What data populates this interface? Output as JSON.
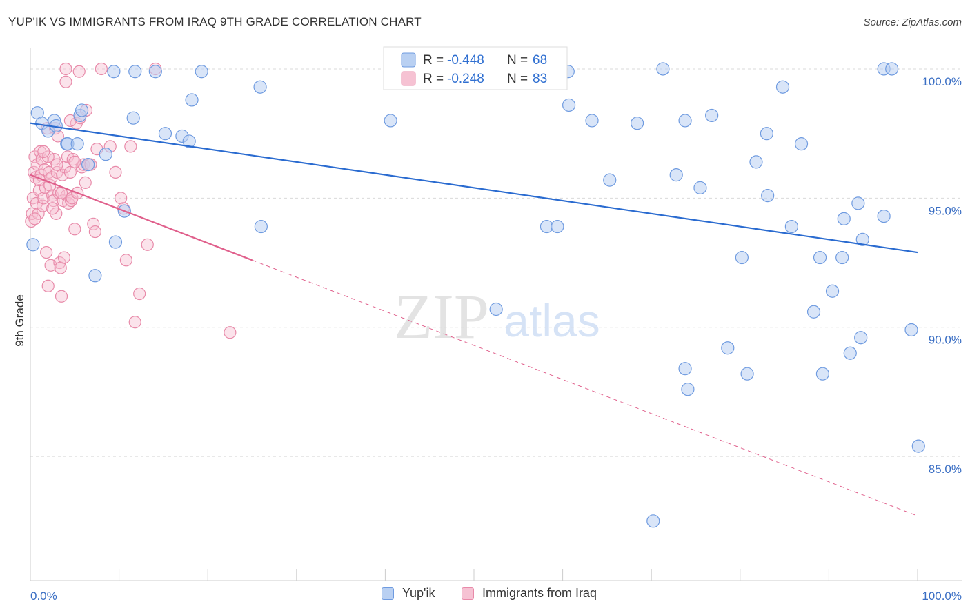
{
  "title": "YUP'IK VS IMMIGRANTS FROM IRAQ 9TH GRADE CORRELATION CHART",
  "source": "Source: ZipAtlas.com",
  "watermark": {
    "zip": "ZIP",
    "atlas": "atlas"
  },
  "colors": {
    "blue": "#6f9be0",
    "blue_fill": "#b9d0f2",
    "blue_line": "#2a6bd0",
    "pink": "#e88aa9",
    "pink_fill": "#f6c2d3",
    "pink_line": "#e0608c",
    "axis_text": "#3b6fc4",
    "grid": "#d9d9d9"
  },
  "legend": {
    "blue": {
      "r_label": "R = ",
      "r_value": "-0.448",
      "n_label": "N = ",
      "n_value": "68"
    },
    "pink": {
      "r_label": "R = ",
      "r_value": "-0.248",
      "n_label": "N = ",
      "n_value": "83"
    }
  },
  "bottom_legend": {
    "blue": "Yup'ik",
    "pink": "Immigrants from Iraq"
  },
  "chart_data": {
    "type": "scatter",
    "title": "YUP'IK VS IMMIGRANTS FROM IRAQ 9TH GRADE CORRELATION CHART",
    "xlabel": "",
    "ylabel": "9th Grade",
    "xlim": [
      0,
      100
    ],
    "ylim": [
      80.2,
      100.8
    ],
    "x_tick_labels": [
      "0.0%",
      "100.0%"
    ],
    "y_ticks": [
      85,
      90,
      95,
      100
    ],
    "y_tick_labels": [
      "85.0%",
      "90.0%",
      "95.0%",
      "100.0%"
    ],
    "grid": true,
    "series": [
      {
        "name": "Yup'ik",
        "r": -0.448,
        "n": 68,
        "trend": {
          "x0": 0,
          "y0": 97.9,
          "x1": 100,
          "y1": 92.9
        },
        "points": [
          [
            0.3,
            93.2
          ],
          [
            0.8,
            98.3
          ],
          [
            1.3,
            97.9
          ],
          [
            2.0,
            97.6
          ],
          [
            2.7,
            98.0
          ],
          [
            2.9,
            97.8
          ],
          [
            4.1,
            97.1
          ],
          [
            4.2,
            97.1
          ],
          [
            5.3,
            97.1
          ],
          [
            5.6,
            98.2
          ],
          [
            5.8,
            98.4
          ],
          [
            6.5,
            96.3
          ],
          [
            7.3,
            92.0
          ],
          [
            8.5,
            96.7
          ],
          [
            9.4,
            99.9
          ],
          [
            9.6,
            93.3
          ],
          [
            10.6,
            94.5
          ],
          [
            11.6,
            98.1
          ],
          [
            11.8,
            99.9
          ],
          [
            14.1,
            99.9
          ],
          [
            15.2,
            97.5
          ],
          [
            17.1,
            97.4
          ],
          [
            17.9,
            97.2
          ],
          [
            18.2,
            98.8
          ],
          [
            19.3,
            99.9
          ],
          [
            26.0,
            93.9
          ],
          [
            25.9,
            99.3
          ],
          [
            40.6,
            98.0
          ],
          [
            42.2,
            99.9
          ],
          [
            52.5,
            90.7
          ],
          [
            58.2,
            93.9
          ],
          [
            59.4,
            93.9
          ],
          [
            60.6,
            99.9
          ],
          [
            60.7,
            98.6
          ],
          [
            63.3,
            98.0
          ],
          [
            65.3,
            95.7
          ],
          [
            68.4,
            97.9
          ],
          [
            70.2,
            82.5
          ],
          [
            71.3,
            100.0
          ],
          [
            72.8,
            95.9
          ],
          [
            73.8,
            88.4
          ],
          [
            74.1,
            87.6
          ],
          [
            73.8,
            98.0
          ],
          [
            75.5,
            95.4
          ],
          [
            76.8,
            98.2
          ],
          [
            78.6,
            89.2
          ],
          [
            80.2,
            92.7
          ],
          [
            80.8,
            88.2
          ],
          [
            81.8,
            96.4
          ],
          [
            83.0,
            97.5
          ],
          [
            83.1,
            95.1
          ],
          [
            84.8,
            99.3
          ],
          [
            85.8,
            93.9
          ],
          [
            86.9,
            97.1
          ],
          [
            88.3,
            90.6
          ],
          [
            89.0,
            92.7
          ],
          [
            89.3,
            88.2
          ],
          [
            90.4,
            91.4
          ],
          [
            91.5,
            92.7
          ],
          [
            91.7,
            94.2
          ],
          [
            92.4,
            89.0
          ],
          [
            93.3,
            94.8
          ],
          [
            93.6,
            89.6
          ],
          [
            93.8,
            93.4
          ],
          [
            96.2,
            94.3
          ],
          [
            96.2,
            100.0
          ],
          [
            97.1,
            100.0
          ],
          [
            99.3,
            89.9
          ],
          [
            100.1,
            85.4
          ]
        ]
      },
      {
        "name": "Immigrants from Iraq",
        "r": -0.248,
        "n": 83,
        "trend": {
          "x0": 0,
          "y0": 95.9,
          "x1": 25,
          "y1": 92.6,
          "dash_x1": 100,
          "dash_y1": 82.7
        },
        "points": [
          [
            0.1,
            94.1
          ],
          [
            0.2,
            94.4
          ],
          [
            0.3,
            95.0
          ],
          [
            0.4,
            96.0
          ],
          [
            0.5,
            96.6
          ],
          [
            0.6,
            95.8
          ],
          [
            0.7,
            94.8
          ],
          [
            0.8,
            96.3
          ],
          [
            0.9,
            94.4
          ],
          [
            1.0,
            95.3
          ],
          [
            1.1,
            96.8
          ],
          [
            1.2,
            95.9
          ],
          [
            1.3,
            96.5
          ],
          [
            1.4,
            94.7
          ],
          [
            1.5,
            95.0
          ],
          [
            1.6,
            96.1
          ],
          [
            1.7,
            95.4
          ],
          [
            1.8,
            92.9
          ],
          [
            1.9,
            97.7
          ],
          [
            2.0,
            91.6
          ],
          [
            2.1,
            96.0
          ],
          [
            2.2,
            95.5
          ],
          [
            2.3,
            92.4
          ],
          [
            2.4,
            95.8
          ],
          [
            2.5,
            95.1
          ],
          [
            2.6,
            94.9
          ],
          [
            2.7,
            96.5
          ],
          [
            2.8,
            97.7
          ],
          [
            2.9,
            94.4
          ],
          [
            3.0,
            96.0
          ],
          [
            3.1,
            97.4
          ],
          [
            3.2,
            95.2
          ],
          [
            3.3,
            92.5
          ],
          [
            3.4,
            92.3
          ],
          [
            3.5,
            91.2
          ],
          [
            3.6,
            95.9
          ],
          [
            3.7,
            94.9
          ],
          [
            3.8,
            92.7
          ],
          [
            3.9,
            96.2
          ],
          [
            4.0,
            99.5
          ],
          [
            4.1,
            95.1
          ],
          [
            4.2,
            96.6
          ],
          [
            4.3,
            94.8
          ],
          [
            4.5,
            96.0
          ],
          [
            4.6,
            94.9
          ],
          [
            4.7,
            95.0
          ],
          [
            4.8,
            96.5
          ],
          [
            5.0,
            93.8
          ],
          [
            5.2,
            97.9
          ],
          [
            5.3,
            95.2
          ],
          [
            5.6,
            98.1
          ],
          [
            5.8,
            96.2
          ],
          [
            6.0,
            96.3
          ],
          [
            6.3,
            98.4
          ],
          [
            6.6,
            96.3
          ],
          [
            6.8,
            96.3
          ],
          [
            7.1,
            94.0
          ],
          [
            7.3,
            93.7
          ],
          [
            7.5,
            96.9
          ],
          [
            8.0,
            100.0
          ],
          [
            9.0,
            97.0
          ],
          [
            9.6,
            96.0
          ],
          [
            10.2,
            95.0
          ],
          [
            10.5,
            94.6
          ],
          [
            10.8,
            92.6
          ],
          [
            11.3,
            97.0
          ],
          [
            11.8,
            90.2
          ],
          [
            12.3,
            91.3
          ],
          [
            13.2,
            93.2
          ],
          [
            14.1,
            100.0
          ],
          [
            22.5,
            89.8
          ],
          [
            4.0,
            100.0
          ],
          [
            4.5,
            98.0
          ],
          [
            5.0,
            96.4
          ],
          [
            3.0,
            96.3
          ],
          [
            2.0,
            96.6
          ],
          [
            1.0,
            95.7
          ],
          [
            1.5,
            96.8
          ],
          [
            2.5,
            94.6
          ],
          [
            3.5,
            95.2
          ],
          [
            5.5,
            99.9
          ],
          [
            6.2,
            95.6
          ],
          [
            0.5,
            94.2
          ]
        ]
      }
    ]
  }
}
